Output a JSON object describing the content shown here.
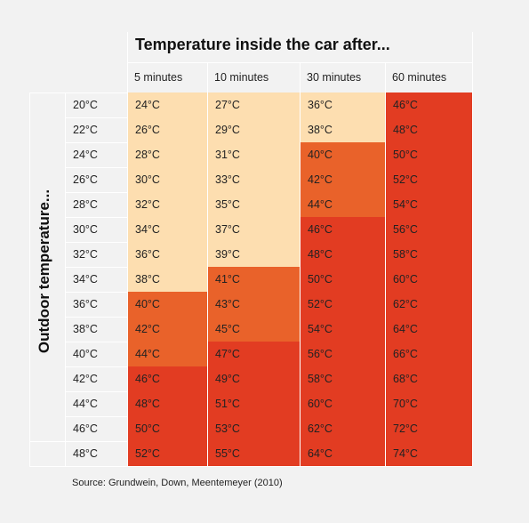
{
  "chart_data": {
    "type": "table",
    "title": "Temperature inside the car after...",
    "row_axis_label": "Outdoor temperature...",
    "column_headers": [
      "5 minutes",
      "10 minutes",
      "30 minutes",
      "60 minutes"
    ],
    "row_headers": [
      "20°C",
      "22°C",
      "24°C",
      "26°C",
      "28°C",
      "30°C",
      "32°C",
      "34°C",
      "36°C",
      "38°C",
      "40°C",
      "42°C",
      "44°C",
      "46°C",
      "48°C"
    ],
    "values": [
      [
        "24°C",
        "27°C",
        "36°C",
        "46°C"
      ],
      [
        "26°C",
        "29°C",
        "38°C",
        "48°C"
      ],
      [
        "28°C",
        "31°C",
        "40°C",
        "50°C"
      ],
      [
        "30°C",
        "33°C",
        "42°C",
        "52°C"
      ],
      [
        "32°C",
        "35°C",
        "44°C",
        "54°C"
      ],
      [
        "34°C",
        "37°C",
        "46°C",
        "56°C"
      ],
      [
        "36°C",
        "39°C",
        "48°C",
        "58°C"
      ],
      [
        "38°C",
        "41°C",
        "50°C",
        "60°C"
      ],
      [
        "40°C",
        "43°C",
        "52°C",
        "62°C"
      ],
      [
        "42°C",
        "45°C",
        "54°C",
        "64°C"
      ],
      [
        "44°C",
        "47°C",
        "56°C",
        "66°C"
      ],
      [
        "46°C",
        "49°C",
        "58°C",
        "68°C"
      ],
      [
        "48°C",
        "51°C",
        "60°C",
        "70°C"
      ],
      [
        "50°C",
        "53°C",
        "62°C",
        "72°C"
      ],
      [
        "52°C",
        "55°C",
        "64°C",
        "74°C"
      ]
    ],
    "color_scale": [
      {
        "below": 40,
        "color": "#fddeb0"
      },
      {
        "below": 46,
        "color": "#e9622a"
      },
      {
        "below": 999,
        "color": "#e23c22"
      }
    ],
    "source": "Source: Grundwein, Down, Meentemeyer (2010)"
  }
}
